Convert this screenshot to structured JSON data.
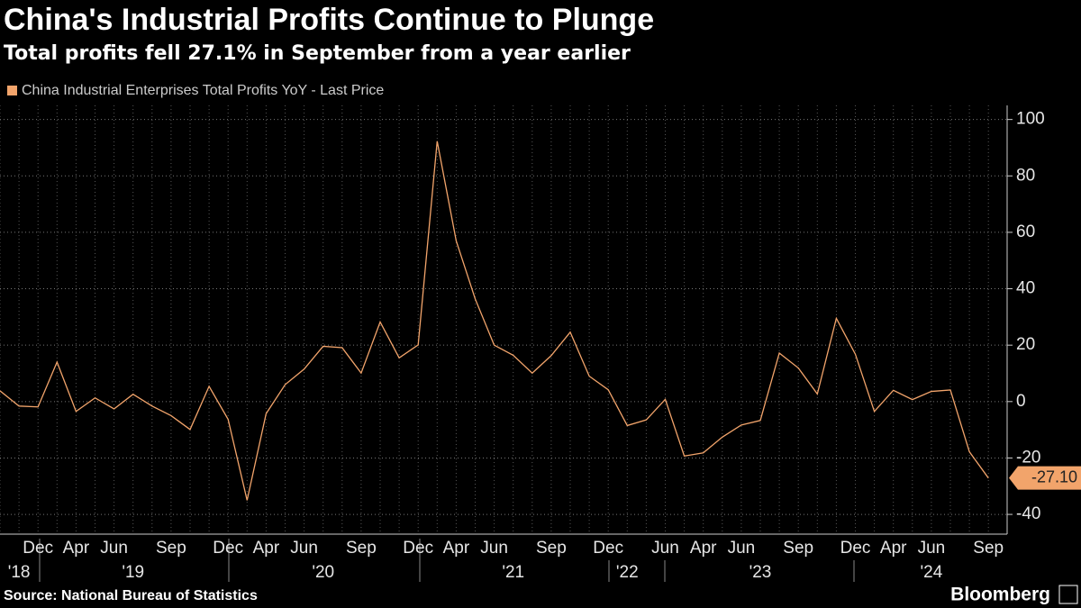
{
  "chart_data": {
    "type": "line",
    "title": "China's Industrial Profits Continue to Plunge",
    "subtitle": "Total profits fell 27.1% in September from a year earlier",
    "source": "Source: National Bureau of Statistics",
    "brand": "Bloomberg",
    "categories": [
      null,
      null,
      "Dec",
      null,
      "Apr",
      null,
      "Jun",
      null,
      null,
      "Sep",
      null,
      null,
      "Dec",
      null,
      "Apr",
      null,
      "Jun",
      null,
      null,
      "Sep",
      null,
      null,
      "Dec",
      null,
      "Apr",
      null,
      "Jun",
      null,
      null,
      "Sep",
      null,
      null,
      "Dec",
      null,
      null,
      "Jun",
      null,
      "Apr",
      null,
      "Jun",
      null,
      null,
      "Sep",
      null,
      null,
      "Dec",
      null,
      "Apr",
      null,
      "Jun",
      null,
      null,
      "Sep"
    ],
    "years": [
      null,
      "'18",
      null,
      null,
      null,
      null,
      null,
      "'19",
      null,
      null,
      null,
      null,
      null,
      null,
      null,
      null,
      null,
      "'20",
      null,
      null,
      null,
      null,
      null,
      null,
      null,
      null,
      null,
      "'21",
      null,
      null,
      null,
      null,
      null,
      "'22",
      null,
      null,
      null,
      null,
      null,
      null,
      "'23",
      null,
      null,
      null,
      null,
      null,
      null,
      null,
      null,
      "'24",
      null,
      null,
      null
    ],
    "series": [
      {
        "name": "China Industrial Enterprises Total Profits YoY - Last Price",
        "color": "#f2a46b",
        "values": [
          3.8,
          -1.6,
          -1.9,
          14.0,
          -3.5,
          1.3,
          -2.6,
          2.6,
          -1.6,
          -5.0,
          -9.9,
          5.4,
          -6.3,
          -35.0,
          -4.3,
          6.0,
          11.5,
          19.6,
          19.1,
          10.1,
          28.2,
          15.5,
          20.1,
          92.3,
          57.0,
          36.4,
          20.0,
          16.4,
          10.1,
          16.3,
          24.6,
          9.0,
          4.2,
          -8.5,
          -6.5,
          0.8,
          -19.3,
          -18.2,
          -12.6,
          -8.3,
          -6.7,
          17.2,
          11.9,
          2.7,
          29.5,
          16.8,
          -3.5,
          4.0,
          0.7,
          3.6,
          4.1,
          -17.8,
          -27.1
        ],
        "value_labels": [
          null,
          null,
          null,
          null,
          null,
          null,
          null,
          null,
          null,
          null,
          null,
          null,
          null,
          null,
          null,
          null,
          null,
          null,
          null,
          null,
          null,
          null,
          null,
          null,
          null,
          null,
          null,
          null,
          null,
          null,
          null,
          null,
          null,
          null,
          null,
          null,
          null,
          null,
          null,
          null,
          null,
          null,
          null,
          null,
          null,
          null,
          null,
          null,
          null,
          null,
          null,
          null,
          "-27.10"
        ]
      }
    ],
    "ylim": [
      -47,
      105
    ],
    "yticks": [
      -40,
      -20,
      0,
      20,
      40,
      60,
      80,
      100
    ],
    "grid": true
  }
}
